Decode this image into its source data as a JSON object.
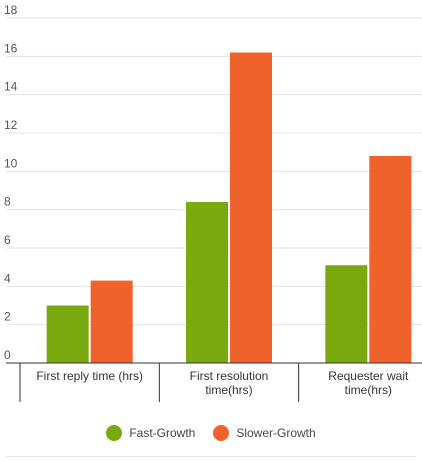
{
  "chart_data": {
    "type": "bar",
    "categories": [
      "First reply time (hrs)",
      "First resolution time(hrs)",
      "Requester wait time(hrs)"
    ],
    "category_lines": [
      [
        "First reply time (hrs)"
      ],
      [
        "First resolution",
        "time(hrs)"
      ],
      [
        "Requester wait",
        "time(hrs)"
      ]
    ],
    "series": [
      {
        "name": "Fast-Growth",
        "values": [
          3.0,
          8.4,
          5.1
        ],
        "color": "#7aa80f"
      },
      {
        "name": "Slower-Growth",
        "values": [
          4.3,
          16.2,
          10.8
        ],
        "color": "#f0622c"
      }
    ],
    "yticks": [
      0,
      2,
      4,
      6,
      8,
      10,
      12,
      14,
      16,
      18
    ],
    "ylim": [
      0,
      18
    ],
    "grid": true,
    "legend": "bottom"
  }
}
